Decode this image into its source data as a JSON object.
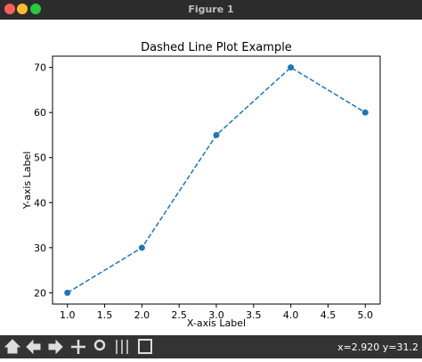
{
  "window": {
    "title": "Figure 1",
    "status": "x=2.920 y=31.2"
  },
  "chart_data": {
    "type": "line",
    "title": "Dashed Line Plot Example",
    "x_label": "X-axis Label",
    "y_label": "Y-axis Label",
    "x": [
      1,
      2,
      3,
      4,
      5
    ],
    "values": [
      20,
      30,
      55,
      70,
      60
    ],
    "color": "#1f77b4",
    "line_style": "dashed",
    "marker": "circle",
    "xlim": [
      0.8,
      5.2
    ],
    "ylim": [
      17.5,
      72.5
    ],
    "xticks": [
      {
        "value": 1,
        "label": "1.0"
      },
      1.5,
      {
        "value": 2,
        "label": "2.0"
      },
      2.5,
      {
        "value": 3,
        "label": "3.0"
      },
      3.5,
      {
        "value": 4,
        "label": "4.0"
      },
      4.5,
      {
        "value": 5,
        "label": "5.0"
      }
    ],
    "yticks": [
      20,
      30,
      40,
      50,
      60,
      70
    ],
    "grid": false
  }
}
